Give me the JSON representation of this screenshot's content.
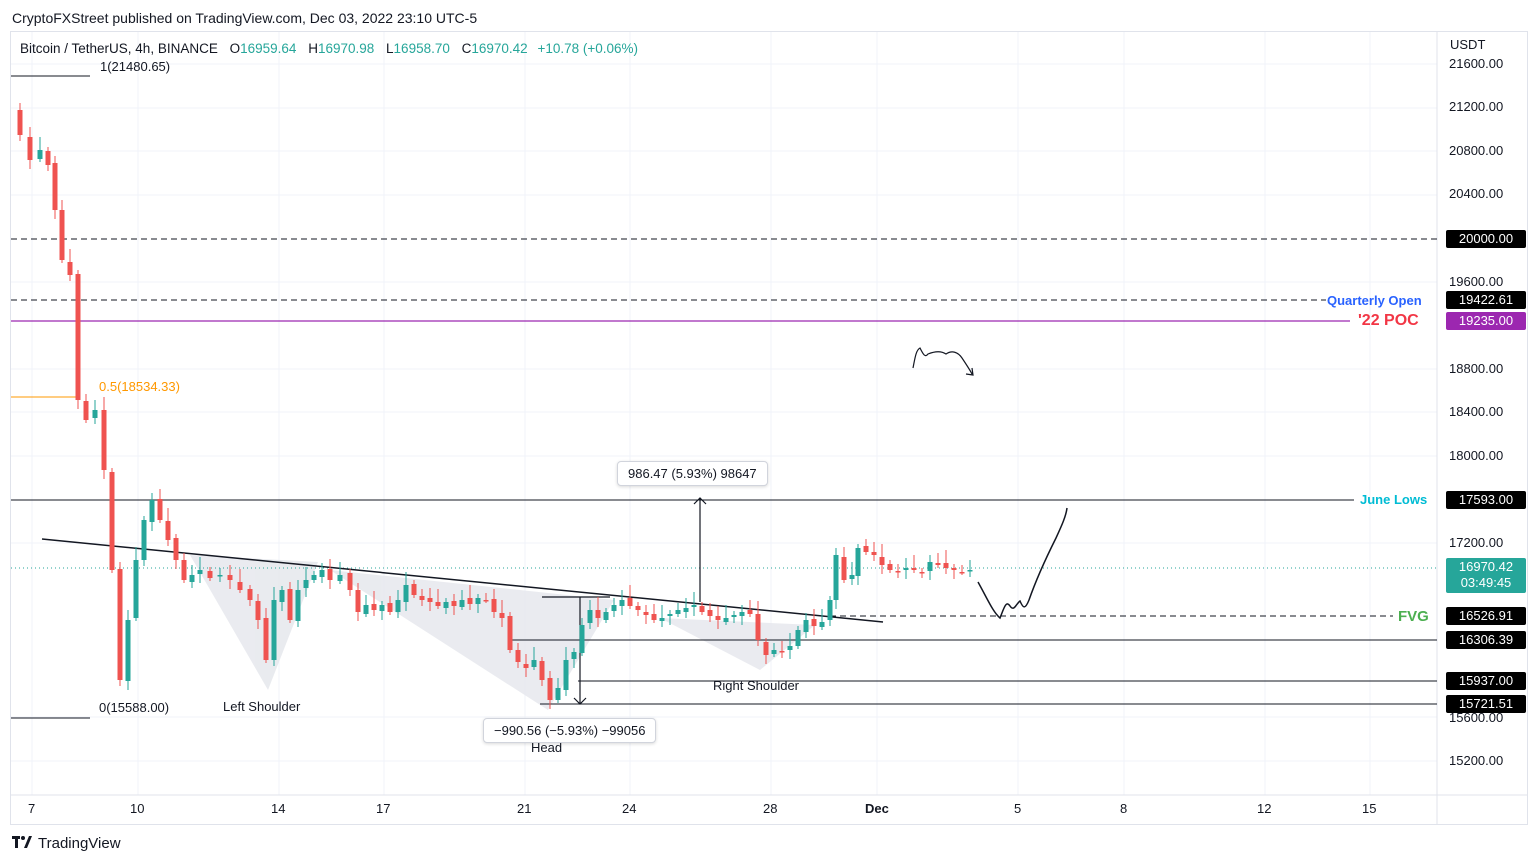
{
  "header": {
    "publish_line": "CryptoFXStreet published on TradingView.com, Dec 03, 2022 23:10 UTC-5"
  },
  "legend": {
    "symbol": "Bitcoin / TetherUS, 4h, BINANCE",
    "open_label": "O",
    "open": "16959.64",
    "high_label": "H",
    "high": "16970.98",
    "low_label": "L",
    "low": "16958.70",
    "close_label": "C",
    "close": "16970.42",
    "change": "+10.78 (+0.06%)"
  },
  "axis": {
    "currency": "USDT",
    "price_ticks": [
      "21600.00",
      "21200.00",
      "20800.00",
      "20400.00",
      "19600.00",
      "18800.00",
      "18400.00",
      "18000.00",
      "17200.00",
      "15600.00",
      "15200.00"
    ],
    "date_ticks": [
      "7",
      "10",
      "14",
      "17",
      "21",
      "24",
      "28",
      "Dec",
      "5",
      "8",
      "12",
      "15"
    ]
  },
  "fib": {
    "level_1": "1(21480.65)",
    "level_05": "0.5(18534.33)",
    "level_0": "0(15588.00)"
  },
  "levels": {
    "twenty_k": "20000.00",
    "quarterly_open_label": "Quarterly Open",
    "quarterly_open": "19422.61",
    "poc_label": "'22 POC",
    "poc": "19235.00",
    "june_lows_label": "June Lows",
    "june_lows": "17593.00",
    "current_price": "16970.42",
    "countdown": "03:49:45",
    "fvg_label": "FVG",
    "fvg": "16526.91",
    "neckline_level": "16306.39",
    "level_15937": "15937.00",
    "level_15721": "15721.51"
  },
  "measures": {
    "up": "986.47 (5.93%) 98647",
    "down": "−990.56 (−5.93%) −99056"
  },
  "pattern": {
    "left_shoulder": "Left Shoulder",
    "head": "Head",
    "right_shoulder": "Right Shoulder"
  },
  "colors": {
    "up": "#26a69a",
    "down": "#ef5350",
    "poc": "#9c27b0",
    "quarterly": "#2962ff",
    "poc_text": "#f23645",
    "june": "#00bcd4",
    "fvg": "#4caf50",
    "fib_half": "#ff9800",
    "last_price": "#26a69a"
  },
  "footer": {
    "brand": "TradingView",
    "logo_icon": "tradingview-logo-icon"
  }
}
